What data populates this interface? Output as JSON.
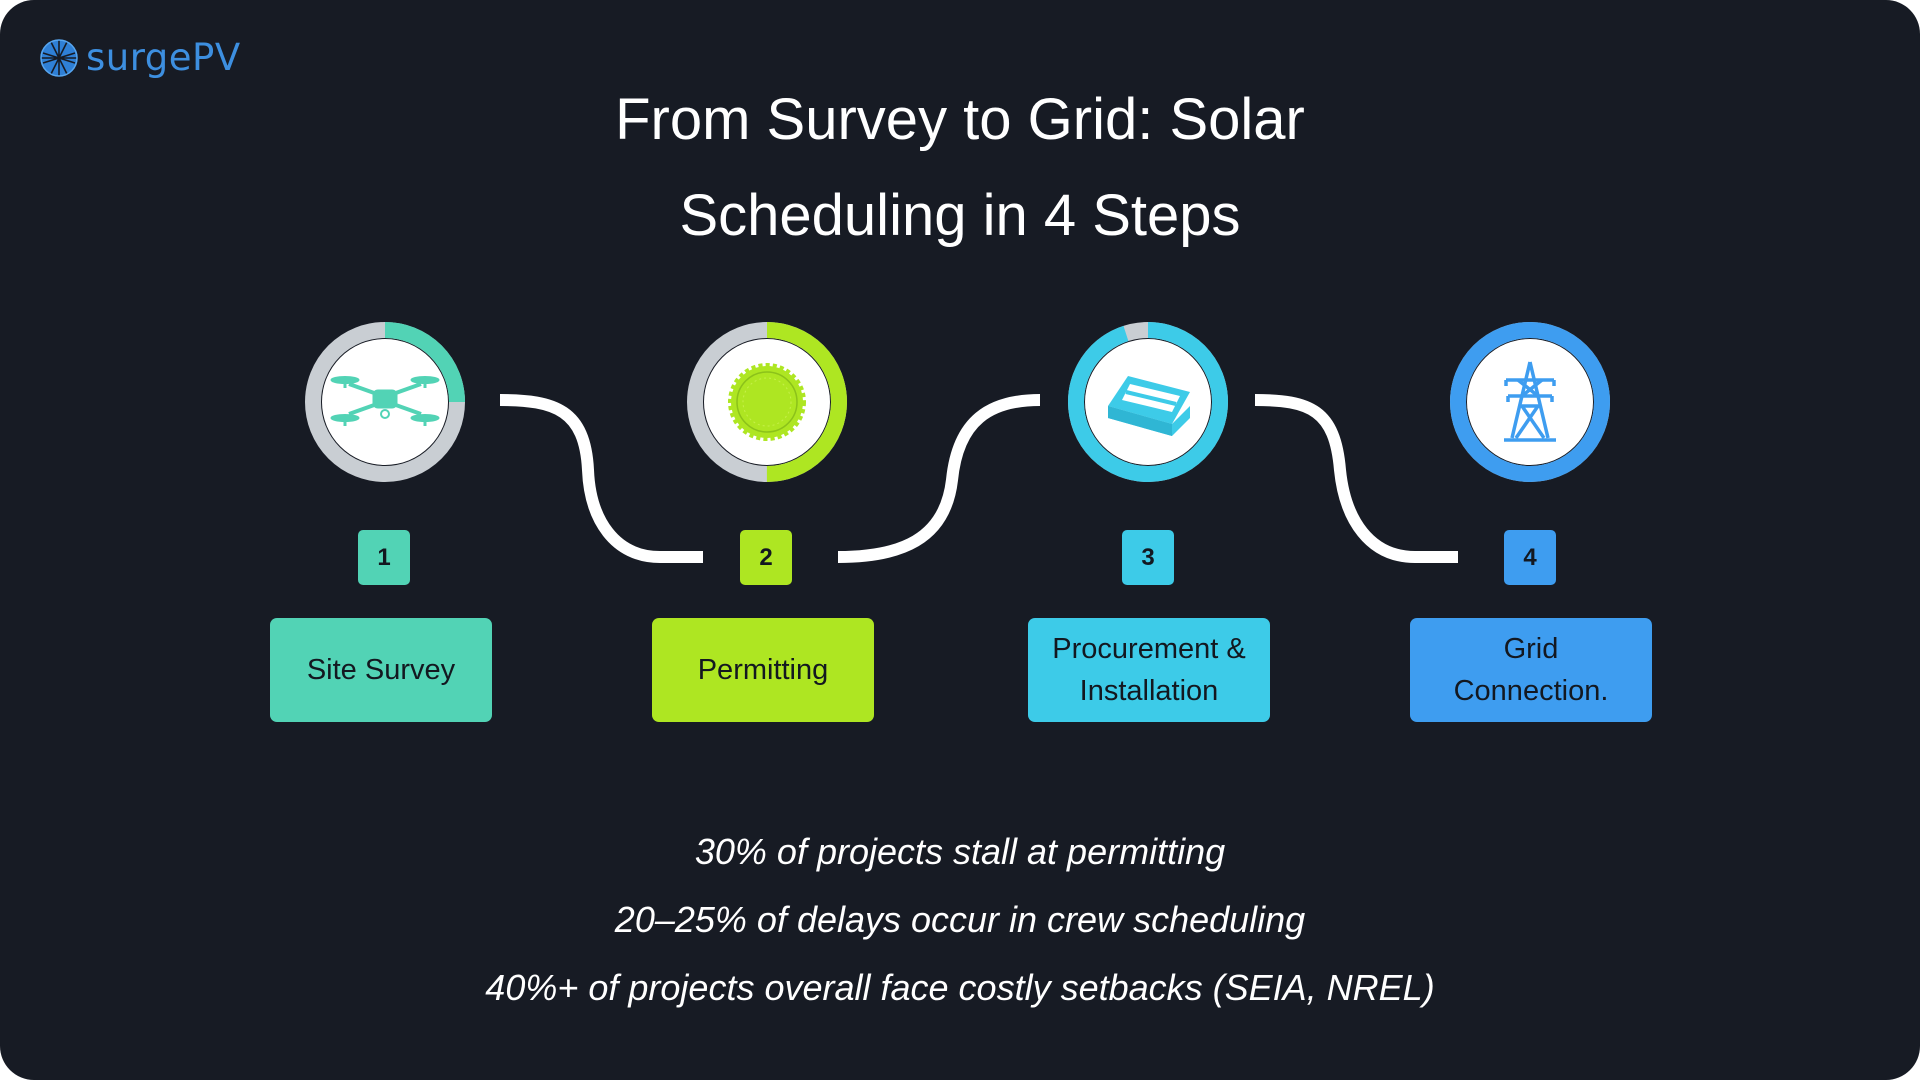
{
  "brand": {
    "logo_text": "surgePV",
    "color": "#3d8fe0"
  },
  "title": {
    "line1": "From Survey to Grid: Solar",
    "line2": "Scheduling in 4 Steps"
  },
  "steps": [
    {
      "number": "1",
      "label": "Site Survey",
      "icon": "drone-icon",
      "color": "#52d3b5",
      "ring_progress": 0.25
    },
    {
      "number": "2",
      "label": "Permitting",
      "icon": "stamp-seal-icon",
      "color": "#aee622",
      "ring_progress": 0.5
    },
    {
      "number": "3",
      "label_line1": "Procurement &",
      "label_line2": "Installation",
      "icon": "solar-panel-box-icon",
      "color": "#3dcbe8",
      "ring_progress": 0.95
    },
    {
      "number": "4",
      "label_line1": "Grid",
      "label_line2": "Connection.",
      "icon": "transmission-tower-icon",
      "color": "#3e9df0",
      "ring_progress": 1.0
    }
  ],
  "stats": [
    "30% of projects stall at permitting",
    "20–25% of delays occur in crew scheduling",
    "40%+ of projects overall face costly setbacks (SEIA, NREL)"
  ],
  "colors": {
    "background": "#171b24",
    "connector": "#ffffff",
    "ring_track": "#c9ced3"
  }
}
